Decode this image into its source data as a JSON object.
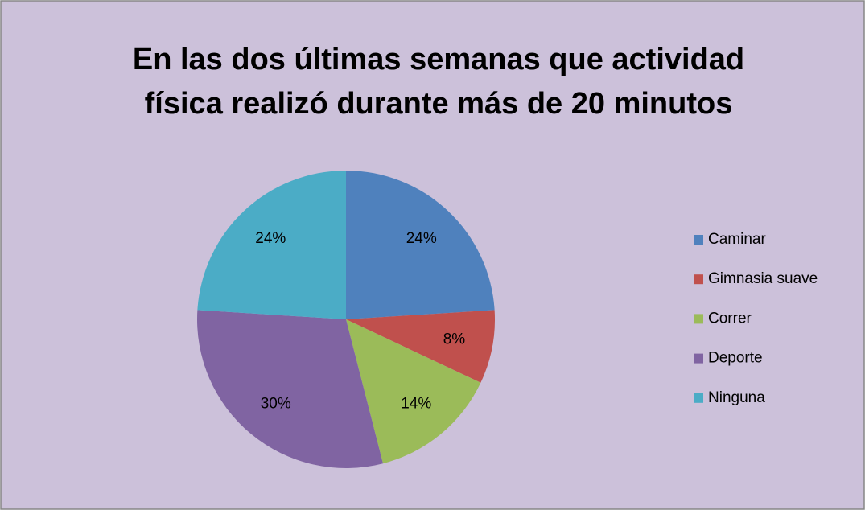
{
  "chart_data": {
    "type": "pie",
    "title": [
      "En las dos últimas semanas que actividad",
      "física realizó durante más de 20 minutos"
    ],
    "categories": [
      "Caminar",
      "Gimnasia suave",
      "Correr",
      "Deporte",
      "Ninguna"
    ],
    "values": [
      24,
      8,
      14,
      30,
      24
    ],
    "value_labels": [
      "24%",
      "8%",
      "14%",
      "30%",
      "24%"
    ],
    "colors": [
      "#4f81bd",
      "#c0504d",
      "#9bbb59",
      "#8064a2",
      "#4bacc6"
    ],
    "legend": "right"
  }
}
